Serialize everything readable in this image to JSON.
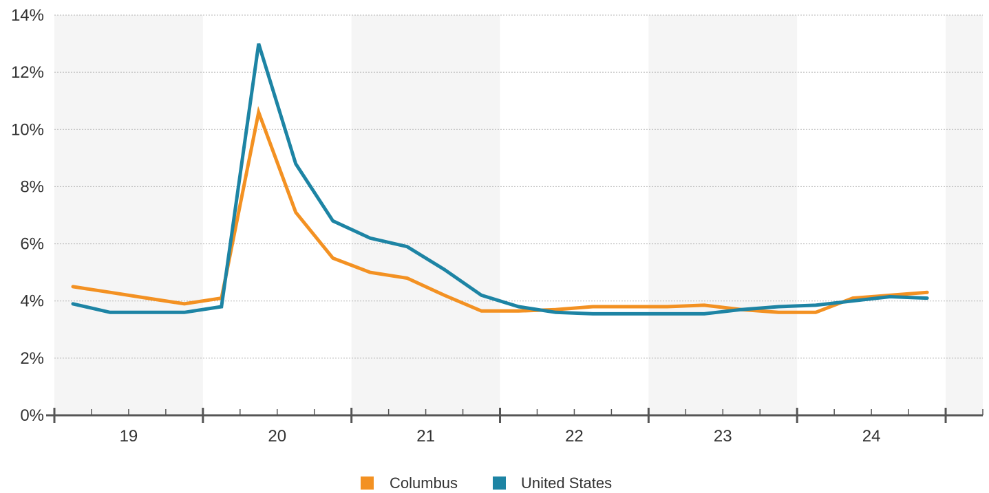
{
  "chart_data": {
    "type": "line",
    "title": "",
    "xlabel": "",
    "ylabel": "",
    "ylim": [
      0,
      14
    ],
    "y_ticks": [
      0,
      2,
      4,
      6,
      8,
      10,
      12,
      14
    ],
    "y_tick_suffix": "%",
    "grid": true,
    "legend_position": "bottom-center",
    "year_labels": [
      "19",
      "20",
      "21",
      "22",
      "23",
      "24"
    ],
    "x_quarters": [
      "2019Q1",
      "2019Q2",
      "2019Q3",
      "2019Q4",
      "2020Q1",
      "2020Q2",
      "2020Q3",
      "2020Q4",
      "2021Q1",
      "2021Q2",
      "2021Q3",
      "2021Q4",
      "2022Q1",
      "2022Q2",
      "2022Q3",
      "2022Q4",
      "2023Q1",
      "2023Q2",
      "2023Q3",
      "2023Q4",
      "2024Q1",
      "2024Q2",
      "2024Q3",
      "2024Q4"
    ],
    "series": [
      {
        "name": "Columbus",
        "color": "#f39122",
        "values": [
          4.5,
          4.3,
          4.1,
          3.9,
          4.1,
          10.6,
          7.1,
          5.5,
          5.0,
          4.8,
          4.2,
          3.65,
          3.65,
          3.7,
          3.8,
          3.8,
          3.8,
          3.85,
          3.7,
          3.6,
          3.6,
          4.1,
          4.2,
          4.3
        ]
      },
      {
        "name": "United States",
        "color": "#1d84a4",
        "values": [
          3.9,
          3.6,
          3.6,
          3.6,
          3.8,
          13.0,
          8.8,
          6.8,
          6.2,
          5.9,
          5.1,
          4.2,
          3.8,
          3.6,
          3.55,
          3.55,
          3.55,
          3.55,
          3.7,
          3.8,
          3.85,
          4.0,
          4.15,
          4.1
        ]
      }
    ]
  }
}
